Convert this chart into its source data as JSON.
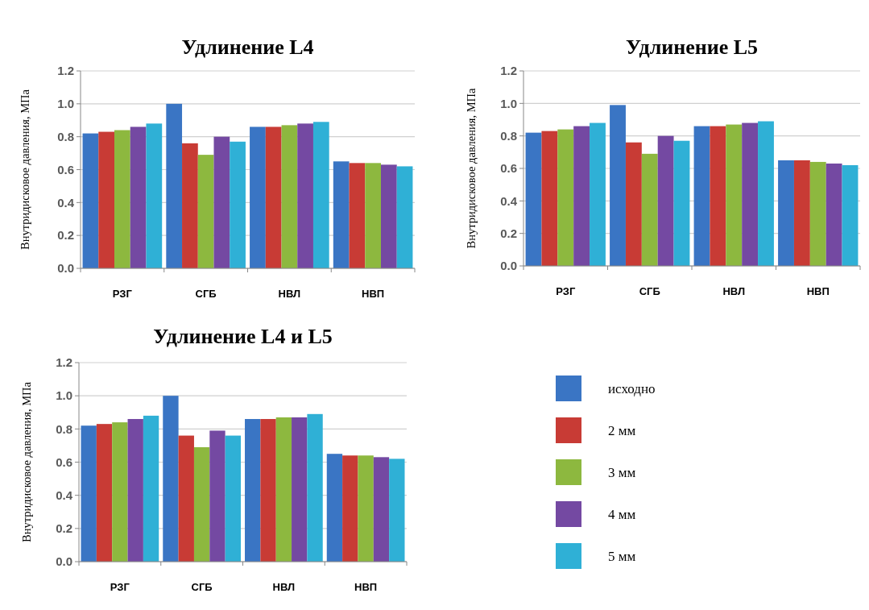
{
  "chart_data": [
    {
      "type": "bar",
      "title": "Удлинение L4",
      "ylabel": "Внутридисковое давления, МПа",
      "categories": [
        "РЗГ",
        "СГБ",
        "НВЛ",
        "НВП"
      ],
      "ylim": [
        0,
        1.2
      ],
      "yticks": [
        {
          "value": 0,
          "label": "0.0"
        },
        {
          "value": 0.2,
          "label": "0.2"
        },
        {
          "value": 0.4,
          "label": "0.4"
        },
        {
          "value": 0.6,
          "label": "0.6"
        },
        {
          "value": 0.8,
          "label": "0.8"
        },
        {
          "value": 1,
          "label": "1.0"
        },
        {
          "value": 1.2,
          "label": "1.2"
        }
      ],
      "grid": "y",
      "legend": false,
      "series": [
        {
          "color": "#3a75c4",
          "values": [
            0.82,
            1.0,
            0.86,
            0.65
          ]
        },
        {
          "color": "#c83b35",
          "values": [
            0.83,
            0.76,
            0.86,
            0.64
          ]
        },
        {
          "color": "#8db83f",
          "values": [
            0.84,
            0.69,
            0.87,
            0.64
          ]
        },
        {
          "color": "#7449a2",
          "values": [
            0.86,
            0.8,
            0.88,
            0.63
          ]
        },
        {
          "color": "#2fb0d6",
          "values": [
            0.88,
            0.77,
            0.89,
            0.62
          ]
        }
      ]
    },
    {
      "type": "bar",
      "title": "Удлинение L5",
      "ylabel": "Внутридисковое давления, МПа",
      "categories": [
        "РЗГ",
        "СГБ",
        "НВЛ",
        "НВП"
      ],
      "ylim": [
        0,
        1.2
      ],
      "yticks": [
        {
          "value": 0,
          "label": "0.0"
        },
        {
          "value": 0.2,
          "label": "0.2"
        },
        {
          "value": 0.4,
          "label": "0.4"
        },
        {
          "value": 0.6,
          "label": "0.6"
        },
        {
          "value": 0.8,
          "label": "0.8"
        },
        {
          "value": 1,
          "label": "1.0"
        },
        {
          "value": 1.2,
          "label": "1.2"
        }
      ],
      "grid": "y",
      "legend": false,
      "series": [
        {
          "color": "#3a75c4",
          "values": [
            0.82,
            0.99,
            0.86,
            0.65
          ]
        },
        {
          "color": "#c83b35",
          "values": [
            0.83,
            0.76,
            0.86,
            0.65
          ]
        },
        {
          "color": "#8db83f",
          "values": [
            0.84,
            0.69,
            0.87,
            0.64
          ]
        },
        {
          "color": "#7449a2",
          "values": [
            0.86,
            0.8,
            0.88,
            0.63
          ]
        },
        {
          "color": "#2fb0d6",
          "values": [
            0.88,
            0.77,
            0.89,
            0.62
          ]
        }
      ]
    },
    {
      "type": "bar",
      "title": "Удлинение L4 и L5",
      "ylabel": "Внутридисковое давления, МПа",
      "categories": [
        "РЗГ",
        "СГБ",
        "НВЛ",
        "НВП"
      ],
      "ylim": [
        0,
        1.2
      ],
      "yticks": [
        {
          "value": 0,
          "label": "0.0"
        },
        {
          "value": 0.2,
          "label": "0.2"
        },
        {
          "value": 0.4,
          "label": "0.4"
        },
        {
          "value": 0.6,
          "label": "0.6"
        },
        {
          "value": 0.8,
          "label": "0.8"
        },
        {
          "value": 1,
          "label": "1.0"
        },
        {
          "value": 1.2,
          "label": "1.2"
        }
      ],
      "grid": "y",
      "legend": "right",
      "series": [
        {
          "name": "исходно",
          "color": "#3a75c4",
          "values": [
            0.82,
            1.0,
            0.86,
            0.65
          ]
        },
        {
          "name": "2 мм",
          "color": "#c83b35",
          "values": [
            0.83,
            0.76,
            0.86,
            0.64
          ]
        },
        {
          "name": "3 мм",
          "color": "#8db83f",
          "values": [
            0.84,
            0.69,
            0.87,
            0.64
          ]
        },
        {
          "name": "4 мм",
          "color": "#7449a2",
          "values": [
            0.86,
            0.79,
            0.87,
            0.63
          ]
        },
        {
          "name": "5 мм",
          "color": "#2fb0d6",
          "values": [
            0.88,
            0.76,
            0.89,
            0.62
          ]
        }
      ]
    }
  ]
}
